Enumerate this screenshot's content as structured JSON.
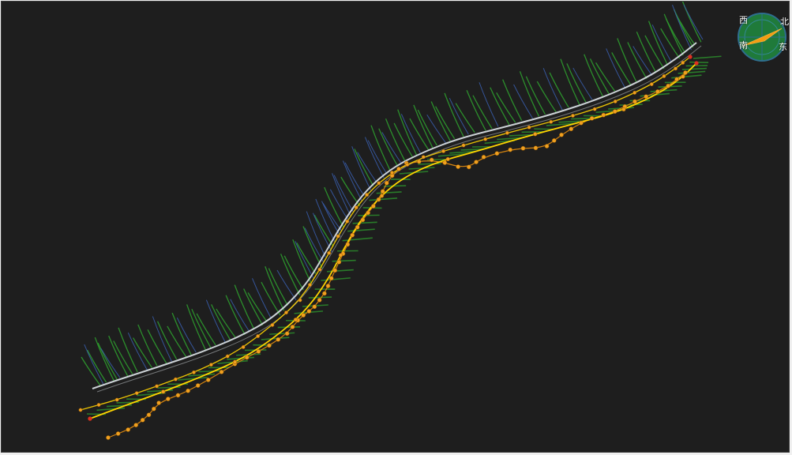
{
  "viewport": {
    "background": "#1e1e1e"
  },
  "compass": {
    "west": "西",
    "north": "北",
    "south": "南",
    "east": "东",
    "ring_color": "#2e6e8e",
    "fill_color": "#1f7a3a",
    "needle_color": "#f39c12"
  },
  "colors": {
    "centerline": "#dfe6ea",
    "terrain_green": "#2e9b2e",
    "terrain_blue": "#3a5fb0",
    "route_line": "#ffd400",
    "route_node": "#f0a020",
    "route_end": "#e03020",
    "branch_line": "#e08a10"
  },
  "icons": [
    "compass-icon"
  ]
}
